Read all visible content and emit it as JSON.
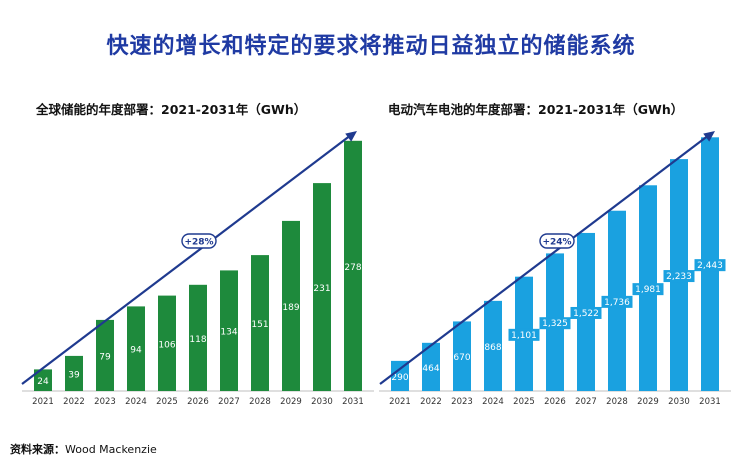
{
  "title": "快速的增长和特定的要求将推动日益独立的储能系统",
  "source": {
    "label": "资料来源：",
    "value": "Wood Mackenzie"
  },
  "colors": {
    "title": "#1f3aa3",
    "arrow": "#1f3a8f",
    "left_bars": "#1e8a3c",
    "right_bars": "#1aa1e0"
  },
  "chart_data": [
    {
      "type": "bar",
      "title": "全球储能的年度部署：2021-2031年（GWh）",
      "categories": [
        "2021",
        "2022",
        "2023",
        "2024",
        "2025",
        "2026",
        "2027",
        "2028",
        "2029",
        "2030",
        "2031"
      ],
      "values": [
        24,
        39,
        79,
        94,
        106,
        118,
        134,
        151,
        189,
        231,
        278
      ],
      "value_labels": [
        "24",
        "39",
        "79",
        "94",
        "106",
        "118",
        "134",
        "151",
        "189",
        "231",
        "278"
      ],
      "annotation": "+28%",
      "ylim": [
        0,
        300
      ]
    },
    {
      "type": "bar",
      "title": "电动汽车电池的年度部署：2021-2031年（GWh）",
      "categories": [
        "2021",
        "2022",
        "2023",
        "2024",
        "2025",
        "2026",
        "2027",
        "2028",
        "2029",
        "2030",
        "2031"
      ],
      "values": [
        290,
        464,
        670,
        868,
        1101,
        1325,
        1522,
        1736,
        1981,
        2233,
        2443
      ],
      "value_labels": [
        "290",
        "464",
        "670",
        "868",
        "1,101",
        "1,325",
        "1,522",
        "1,736",
        "1,981",
        "2,233",
        "2,443"
      ],
      "annotation": "+24%",
      "ylim": [
        0,
        2600
      ]
    }
  ]
}
